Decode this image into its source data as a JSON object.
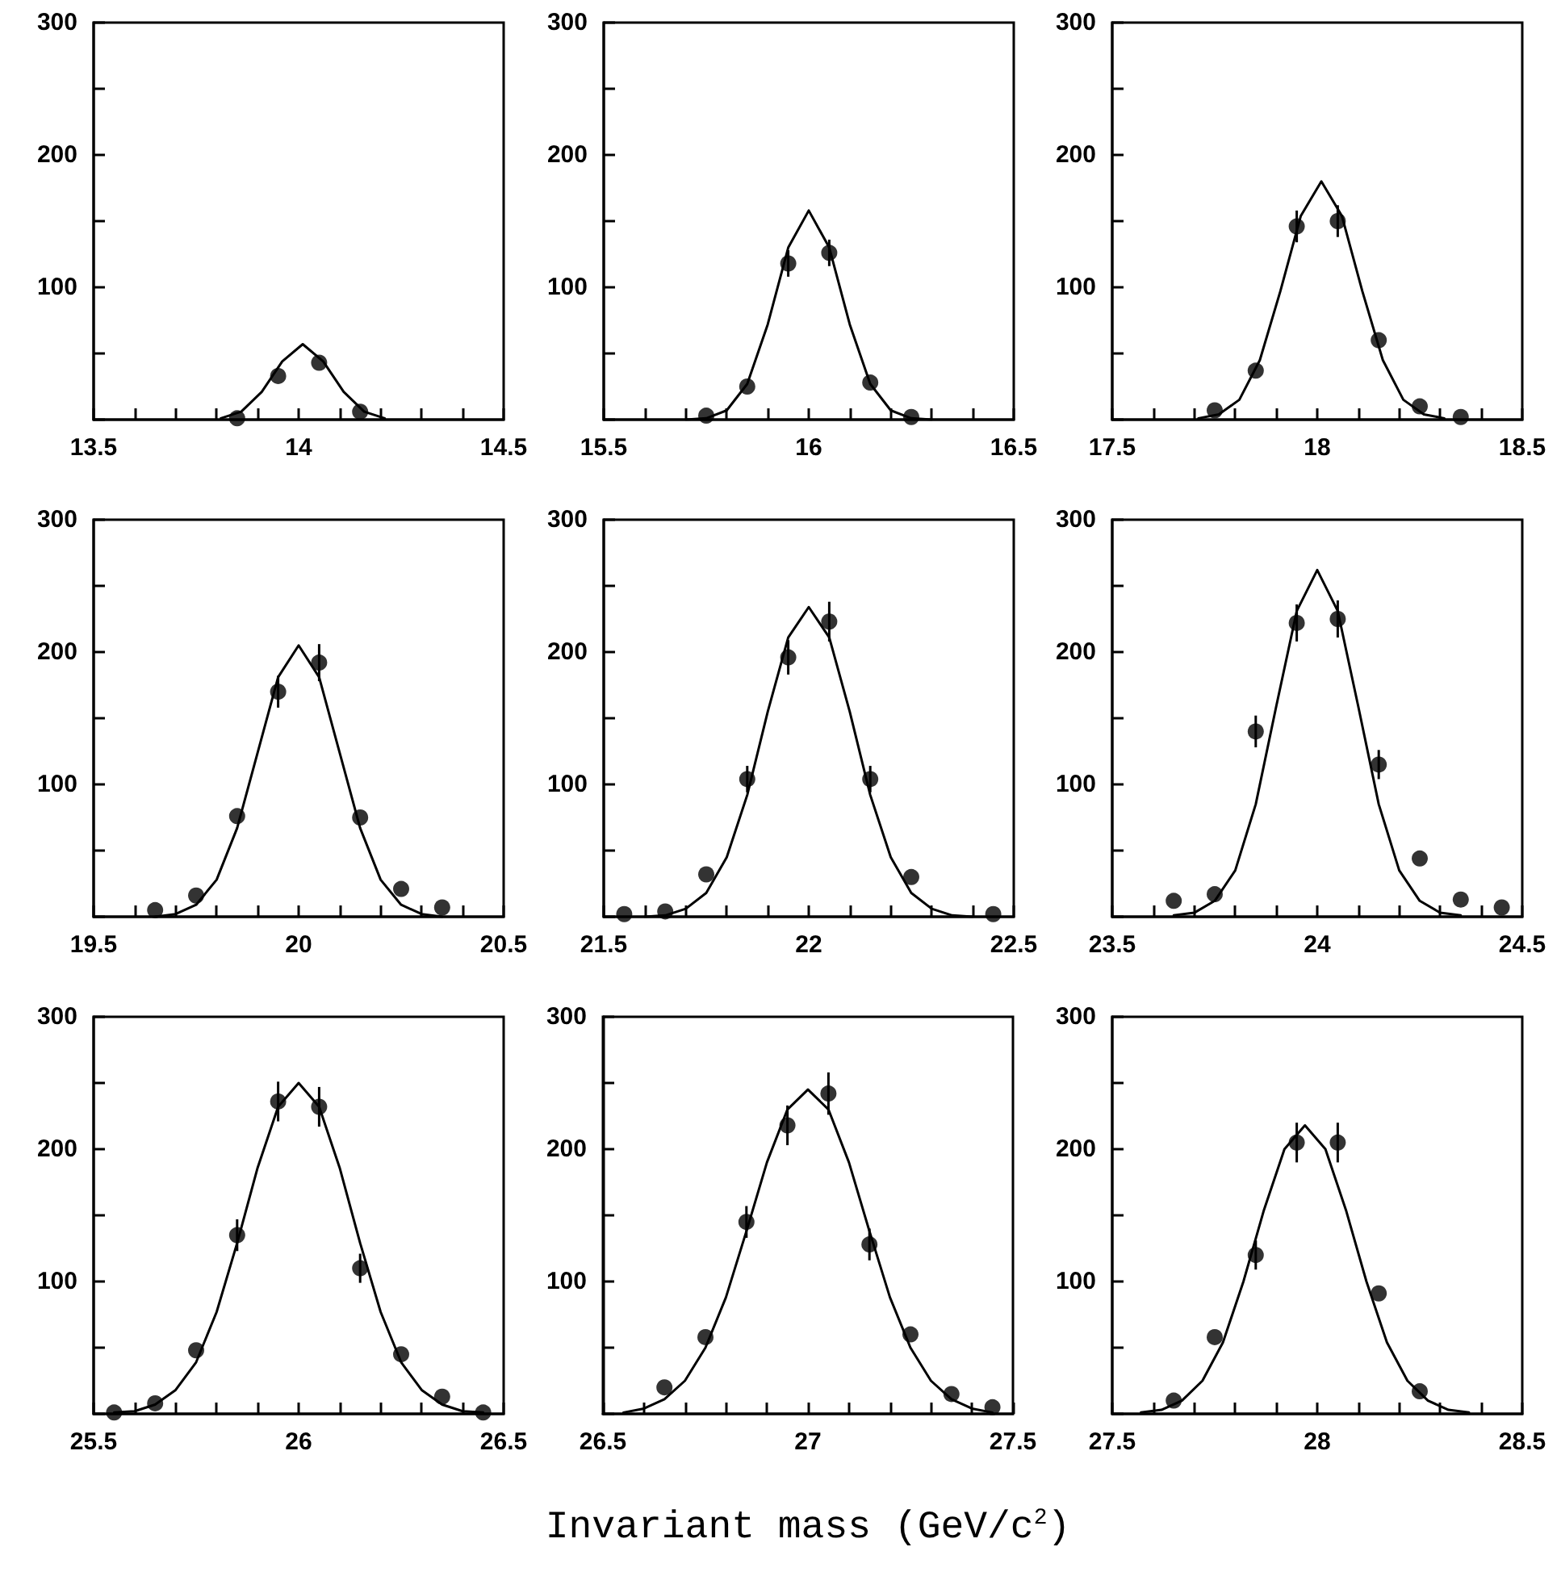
{
  "chart_data": [
    {
      "type": "scatter",
      "xlim": [
        13.5,
        14.5
      ],
      "ylim": [
        0,
        300
      ],
      "xticks": [
        13.5,
        {
          "value": 13.6,
          "label": null
        },
        {
          "value": 13.7,
          "label": null
        },
        {
          "value": 13.8,
          "label": null
        },
        {
          "value": 13.9,
          "label": null
        },
        14,
        {
          "value": 14.1,
          "label": null
        },
        {
          "value": 14.2,
          "label": null
        },
        {
          "value": 14.3,
          "label": null
        },
        {
          "value": 14.4,
          "label": null
        },
        14.5
      ],
      "yticks": [
        {
          "value": 0,
          "label": null
        },
        {
          "value": 50,
          "label": null
        },
        100,
        {
          "value": 150,
          "label": null
        },
        200,
        {
          "value": 250,
          "label": null
        },
        300
      ],
      "series": [
        {
          "type": "scatter",
          "marker": "circle",
          "color": "#000000",
          "x": [
            13.85,
            13.95,
            14.05,
            14.15
          ],
          "values": [
            1,
            33,
            43,
            6
          ],
          "errors": [
            null,
            null,
            null,
            null
          ]
        },
        {
          "type": "line",
          "marker": "none",
          "line_style": "solid",
          "color": "#000000",
          "x": [
            13.81,
            13.86,
            13.91,
            13.96,
            14.01,
            14.06,
            14.11,
            14.16,
            14.21
          ],
          "values": [
            1,
            6,
            21,
            44,
            57,
            44,
            21,
            6,
            1
          ]
        }
      ]
    },
    {
      "type": "scatter",
      "xlim": [
        15.5,
        16.5
      ],
      "ylim": [
        0,
        300
      ],
      "xticks": [
        15.5,
        {
          "value": 15.6,
          "label": null
        },
        {
          "value": 15.7,
          "label": null
        },
        {
          "value": 15.8,
          "label": null
        },
        {
          "value": 15.9,
          "label": null
        },
        16,
        {
          "value": 16.1,
          "label": null
        },
        {
          "value": 16.2,
          "label": null
        },
        {
          "value": 16.3,
          "label": null
        },
        {
          "value": 16.4,
          "label": null
        },
        16.5
      ],
      "yticks": [
        {
          "value": 0,
          "label": null
        },
        {
          "value": 50,
          "label": null
        },
        100,
        {
          "value": 150,
          "label": null
        },
        200,
        {
          "value": 250,
          "label": null
        },
        300
      ],
      "series": [
        {
          "type": "scatter",
          "marker": "circle",
          "color": "#000000",
          "x": [
            15.75,
            15.85,
            15.95,
            16.05,
            16.15,
            16.25
          ],
          "values": [
            3,
            25,
            118,
            126,
            28,
            2
          ],
          "errors": [
            null,
            null,
            10,
            10,
            null,
            null
          ]
        },
        {
          "type": "line",
          "marker": "none",
          "line_style": "solid",
          "color": "#000000",
          "x": [
            15.7,
            15.75,
            15.8,
            15.85,
            15.9,
            15.95,
            16.0,
            16.05,
            16.1,
            16.15,
            16.2,
            16.25,
            16.3
          ],
          "values": [
            0,
            1,
            7,
            27,
            72,
            130,
            158,
            130,
            72,
            27,
            7,
            1,
            0
          ]
        }
      ]
    },
    {
      "type": "scatter",
      "xlim": [
        17.5,
        18.5
      ],
      "ylim": [
        0,
        300
      ],
      "xticks": [
        17.5,
        {
          "value": 17.6,
          "label": null
        },
        {
          "value": 17.7,
          "label": null
        },
        {
          "value": 17.8,
          "label": null
        },
        {
          "value": 17.9,
          "label": null
        },
        18,
        {
          "value": 18.1,
          "label": null
        },
        {
          "value": 18.2,
          "label": null
        },
        {
          "value": 18.3,
          "label": null
        },
        {
          "value": 18.4,
          "label": null
        },
        18.5
      ],
      "yticks": [
        {
          "value": 0,
          "label": null
        },
        {
          "value": 50,
          "label": null
        },
        100,
        {
          "value": 150,
          "label": null
        },
        200,
        {
          "value": 250,
          "label": null
        },
        300
      ],
      "series": [
        {
          "type": "scatter",
          "marker": "circle",
          "color": "#000000",
          "x": [
            17.75,
            17.85,
            17.95,
            18.05,
            18.15,
            18.25,
            18.35
          ],
          "values": [
            7,
            37,
            146,
            150,
            60,
            10,
            2
          ],
          "errors": [
            null,
            null,
            12,
            12,
            null,
            null,
            null
          ]
        },
        {
          "type": "line",
          "marker": "none",
          "line_style": "solid",
          "color": "#000000",
          "x": [
            17.71,
            17.76,
            17.81,
            17.86,
            17.91,
            17.96,
            18.01,
            18.06,
            18.11,
            18.16,
            18.21,
            18.26,
            18.31
          ],
          "values": [
            1,
            4,
            15,
            45,
            97,
            154,
            180,
            154,
            97,
            45,
            15,
            4,
            1
          ]
        }
      ]
    },
    {
      "type": "scatter",
      "xlim": [
        19.5,
        20.5
      ],
      "ylim": [
        0,
        300
      ],
      "xticks": [
        19.5,
        {
          "value": 19.6,
          "label": null
        },
        {
          "value": 19.7,
          "label": null
        },
        {
          "value": 19.8,
          "label": null
        },
        {
          "value": 19.9,
          "label": null
        },
        20,
        {
          "value": 20.1,
          "label": null
        },
        {
          "value": 20.2,
          "label": null
        },
        {
          "value": 20.3,
          "label": null
        },
        {
          "value": 20.4,
          "label": null
        },
        20.5
      ],
      "yticks": [
        {
          "value": 0,
          "label": null
        },
        {
          "value": 50,
          "label": null
        },
        100,
        {
          "value": 150,
          "label": null
        },
        200,
        {
          "value": 250,
          "label": null
        },
        300
      ],
      "series": [
        {
          "type": "scatter",
          "marker": "circle",
          "color": "#000000",
          "x": [
            19.65,
            19.75,
            19.85,
            19.95,
            20.05,
            20.15,
            20.25,
            20.35
          ],
          "values": [
            5,
            16,
            76,
            170,
            192,
            75,
            21,
            7
          ],
          "errors": [
            null,
            null,
            null,
            12,
            14,
            null,
            null,
            null
          ]
        },
        {
          "type": "line",
          "marker": "none",
          "line_style": "solid",
          "color": "#000000",
          "x": [
            19.65,
            19.7,
            19.75,
            19.8,
            19.85,
            19.9,
            19.95,
            20.0,
            20.05,
            20.1,
            20.15,
            20.2,
            20.25,
            20.3,
            20.35
          ],
          "values": [
            0,
            2,
            9,
            28,
            67,
            124,
            181,
            205,
            181,
            124,
            67,
            28,
            9,
            2,
            0
          ]
        }
      ]
    },
    {
      "type": "scatter",
      "xlim": [
        21.5,
        22.5
      ],
      "ylim": [
        0,
        300
      ],
      "xticks": [
        21.5,
        {
          "value": 21.6,
          "label": null
        },
        {
          "value": 21.7,
          "label": null
        },
        {
          "value": 21.8,
          "label": null
        },
        {
          "value": 21.9,
          "label": null
        },
        22,
        {
          "value": 22.1,
          "label": null
        },
        {
          "value": 22.2,
          "label": null
        },
        {
          "value": 22.3,
          "label": null
        },
        {
          "value": 22.4,
          "label": null
        },
        22.5
      ],
      "yticks": [
        {
          "value": 0,
          "label": null
        },
        {
          "value": 50,
          "label": null
        },
        100,
        {
          "value": 150,
          "label": null
        },
        200,
        {
          "value": 250,
          "label": null
        },
        300
      ],
      "series": [
        {
          "type": "scatter",
          "marker": "circle",
          "color": "#000000",
          "x": [
            21.55,
            21.65,
            21.75,
            21.85,
            21.95,
            22.05,
            22.15,
            22.25,
            22.45
          ],
          "values": [
            2,
            4,
            32,
            104,
            196,
            223,
            104,
            30,
            2
          ],
          "errors": [
            null,
            null,
            null,
            10,
            13,
            15,
            10,
            null,
            null
          ]
        },
        {
          "type": "line",
          "marker": "none",
          "line_style": "solid",
          "color": "#000000",
          "x": [
            21.6,
            21.65,
            21.7,
            21.75,
            21.8,
            21.85,
            21.9,
            21.95,
            22.0,
            22.05,
            22.1,
            22.15,
            22.2,
            22.25,
            22.3,
            22.35,
            22.4
          ],
          "values": [
            0,
            1,
            6,
            18,
            45,
            92,
            155,
            211,
            234,
            211,
            155,
            92,
            45,
            18,
            6,
            1,
            0
          ]
        }
      ]
    },
    {
      "type": "scatter",
      "xlim": [
        23.5,
        24.5
      ],
      "ylim": [
        0,
        300
      ],
      "xticks": [
        23.5,
        {
          "value": 23.6,
          "label": null
        },
        {
          "value": 23.7,
          "label": null
        },
        {
          "value": 23.8,
          "label": null
        },
        {
          "value": 23.9,
          "label": null
        },
        24,
        {
          "value": 24.1,
          "label": null
        },
        {
          "value": 24.2,
          "label": null
        },
        {
          "value": 24.3,
          "label": null
        },
        {
          "value": 24.4,
          "label": null
        },
        24.5
      ],
      "yticks": [
        {
          "value": 0,
          "label": null
        },
        {
          "value": 50,
          "label": null
        },
        100,
        {
          "value": 150,
          "label": null
        },
        200,
        {
          "value": 250,
          "label": null
        },
        300
      ],
      "series": [
        {
          "type": "scatter",
          "marker": "circle",
          "color": "#000000",
          "x": [
            23.65,
            23.75,
            23.85,
            23.95,
            24.05,
            24.15,
            24.25,
            24.35,
            24.45
          ],
          "values": [
            12,
            17,
            140,
            222,
            225,
            115,
            44,
            13,
            7
          ],
          "errors": [
            null,
            null,
            12,
            14,
            14,
            11,
            null,
            null,
            null
          ]
        },
        {
          "type": "line",
          "marker": "none",
          "line_style": "solid",
          "color": "#000000",
          "x": [
            23.65,
            23.7,
            23.75,
            23.8,
            23.85,
            23.9,
            23.95,
            24.0,
            24.05,
            24.1,
            24.15,
            24.2,
            24.25,
            24.3,
            24.35
          ],
          "values": [
            1,
            3,
            12,
            35,
            85,
            159,
            231,
            262,
            231,
            159,
            85,
            35,
            12,
            3,
            1
          ]
        }
      ]
    },
    {
      "type": "scatter",
      "xlim": [
        25.5,
        26.5
      ],
      "ylim": [
        0,
        300
      ],
      "xticks": [
        25.5,
        {
          "value": 25.6,
          "label": null
        },
        {
          "value": 25.7,
          "label": null
        },
        {
          "value": 25.8,
          "label": null
        },
        {
          "value": 25.9,
          "label": null
        },
        26,
        {
          "value": 26.1,
          "label": null
        },
        {
          "value": 26.2,
          "label": null
        },
        {
          "value": 26.3,
          "label": null
        },
        {
          "value": 26.4,
          "label": null
        },
        26.5
      ],
      "yticks": [
        {
          "value": 0,
          "label": null
        },
        {
          "value": 50,
          "label": null
        },
        100,
        {
          "value": 150,
          "label": null
        },
        200,
        {
          "value": 250,
          "label": null
        },
        300
      ],
      "series": [
        {
          "type": "scatter",
          "marker": "circle",
          "color": "#000000",
          "x": [
            25.55,
            25.65,
            25.75,
            25.85,
            25.95,
            26.05,
            26.15,
            26.25,
            26.35,
            26.45
          ],
          "values": [
            1,
            8,
            48,
            135,
            236,
            232,
            110,
            45,
            13,
            1
          ],
          "errors": [
            null,
            null,
            null,
            12,
            15,
            15,
            11,
            null,
            null,
            null
          ]
        },
        {
          "type": "line",
          "marker": "none",
          "line_style": "solid",
          "color": "#000000",
          "x": [
            25.55,
            25.6,
            25.65,
            25.7,
            25.75,
            25.8,
            25.85,
            25.9,
            25.95,
            26.0,
            26.05,
            26.1,
            26.15,
            26.2,
            26.25,
            26.3,
            26.35,
            26.4,
            26.45
          ],
          "values": [
            1,
            2,
            7,
            18,
            39,
            77,
            129,
            186,
            232,
            250,
            232,
            186,
            129,
            77,
            39,
            18,
            7,
            2,
            1
          ]
        }
      ]
    },
    {
      "type": "scatter",
      "xlim": [
        26.5,
        27.5
      ],
      "ylim": [
        0,
        300
      ],
      "xlabel": "Invariant mass (GeV/c$^{2}$)",
      "xticks": [
        26.5,
        {
          "value": 26.6,
          "label": null
        },
        {
          "value": 26.7,
          "label": null
        },
        {
          "value": 26.8,
          "label": null
        },
        {
          "value": 26.9,
          "label": null
        },
        27,
        {
          "value": 27.1,
          "label": null
        },
        {
          "value": 27.2,
          "label": null
        },
        {
          "value": 27.3,
          "label": null
        },
        {
          "value": 27.4,
          "label": null
        },
        27.5
      ],
      "yticks": [
        {
          "value": 0,
          "label": null
        },
        {
          "value": 50,
          "label": null
        },
        100,
        {
          "value": 150,
          "label": null
        },
        200,
        {
          "value": 250,
          "label": null
        },
        300
      ],
      "series": [
        {
          "type": "scatter",
          "marker": "circle",
          "color": "#000000",
          "x": [
            26.65,
            26.75,
            26.85,
            26.95,
            27.05,
            27.15,
            27.25,
            27.35,
            27.45
          ],
          "values": [
            20,
            58,
            145,
            218,
            242,
            128,
            60,
            15,
            5
          ],
          "errors": [
            null,
            null,
            12,
            15,
            16,
            12,
            null,
            null,
            null
          ]
        },
        {
          "type": "line",
          "marker": "none",
          "line_style": "solid",
          "color": "#000000",
          "x": [
            26.55,
            26.6,
            26.65,
            26.7,
            26.75,
            26.8,
            26.85,
            26.9,
            26.95,
            27.0,
            27.05,
            27.1,
            27.15,
            27.2,
            27.25,
            27.3,
            27.35,
            27.4,
            27.45
          ],
          "values": [
            1,
            4,
            11,
            25,
            50,
            88,
            138,
            190,
            230,
            245,
            230,
            190,
            138,
            88,
            50,
            25,
            11,
            4,
            1
          ]
        }
      ]
    },
    {
      "type": "scatter",
      "xlim": [
        27.5,
        28.5
      ],
      "ylim": [
        0,
        300
      ],
      "xticks": [
        27.5,
        {
          "value": 27.6,
          "label": null
        },
        {
          "value": 27.7,
          "label": null
        },
        {
          "value": 27.8,
          "label": null
        },
        {
          "value": 27.9,
          "label": null
        },
        28,
        {
          "value": 28.1,
          "label": null
        },
        {
          "value": 28.2,
          "label": null
        },
        {
          "value": 28.3,
          "label": null
        },
        {
          "value": 28.4,
          "label": null
        },
        28.5
      ],
      "yticks": [
        {
          "value": 0,
          "label": null
        },
        {
          "value": 50,
          "label": null
        },
        100,
        {
          "value": 150,
          "label": null
        },
        200,
        {
          "value": 250,
          "label": null
        },
        300
      ],
      "series": [
        {
          "type": "scatter",
          "marker": "circle",
          "color": "#000000",
          "x": [
            27.65,
            27.75,
            27.85,
            27.95,
            28.05,
            28.15,
            28.25
          ],
          "values": [
            10,
            58,
            120,
            205,
            205,
            91,
            17
          ],
          "errors": [
            null,
            null,
            11,
            15,
            15,
            null,
            null
          ]
        },
        {
          "type": "line",
          "marker": "none",
          "line_style": "solid",
          "color": "#000000",
          "x": [
            27.57,
            27.62,
            27.67,
            27.72,
            27.77,
            27.82,
            27.87,
            27.92,
            27.97,
            28.02,
            28.07,
            28.12,
            28.17,
            28.22,
            28.27,
            28.32,
            28.37
          ],
          "values": [
            1,
            3,
            10,
            25,
            54,
            100,
            154,
            200,
            218,
            200,
            154,
            100,
            54,
            25,
            10,
            3,
            1
          ]
        }
      ]
    }
  ]
}
